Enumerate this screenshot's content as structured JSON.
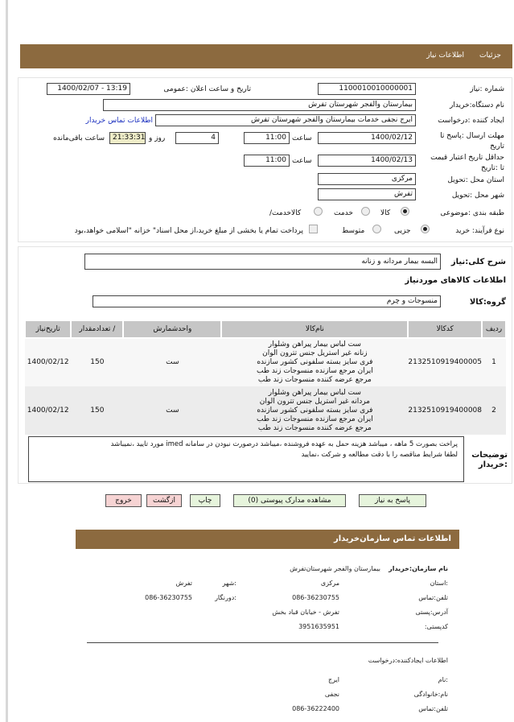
{
  "tabs": {
    "details": "جزئیات",
    "need_info": "اطلاعات نیاز"
  },
  "form": {
    "need_number_label": "شماره :نیاز",
    "need_number": "1100010010000001",
    "announce_label": "تاریخ و ساعت اعلان :عمومی",
    "announce_value": "1400/02/07 - 13:19",
    "buyer_org_label": "نام دستگاه:خریدار",
    "buyer_org": "بیمارستان والفجر شهرستان تفرش",
    "creator_label": "ایجاد کننده :درخواست",
    "creator": "ایرج نجفی خدمات بیمارستان والفجر شهرستان تفرش",
    "contact_link": "اطلاعات تماس خریدار",
    "deadline_label": "مهلت ارسال :پاسخ تا تاریخ",
    "deadline_date": "1400/02/12",
    "time_label": "ساعت",
    "deadline_time": "11:00",
    "days": "4",
    "days_label": "روز و",
    "remaining": "21:33:31",
    "remaining_label": "ساعت باقی‌مانده",
    "validity_label": "حداقل تاریخ اعتبار قیمت تا :تاریخ",
    "validity_date": "1400/02/13",
    "validity_time": "11:00",
    "province_label": "استان محل :تحویل",
    "province": "مرکزی",
    "city_label": "شهر محل :تحویل",
    "city": "تفرش",
    "category_label": "طبقه بندی :موضوعی",
    "cat_options": [
      "کالا",
      "خدمت",
      "/کالاخدمت"
    ],
    "cat_selected": "کالا",
    "process_label": "نوع فرآیند: خرید",
    "process_options": [
      "جزیی",
      "متوسط"
    ],
    "process_selected": "جزیی",
    "treasury_text": "پرداخت تمام یا بخشی از مبلغ خرید،از محل اسناد\" خزانه \"اسلامی خواهد،بود"
  },
  "summary": {
    "label": "شرح کلی:نیاز",
    "value": "البسه بیمار مردانه و زنانه",
    "goods_title": "اطلاعات کالاهای موردنیاز",
    "group_label": "گروه:کالا",
    "group_value": "منسوجات و چرم"
  },
  "table": {
    "headers": [
      "ردیف",
      "کدکالا",
      "نام‌کالا",
      "واحدشمارش",
      "/ تعدادمقدار",
      "تاریخ‌نیاز"
    ],
    "rows": [
      {
        "no": "1",
        "code": "2132510919400005",
        "name": [
          "ست لباس بیمار پیراهن وشلوار",
          "زنانه غیر استریل جنس تترون الوان",
          "فری سایز بسته سلفونی کشور سازنده",
          "ایران مرجع سازنده منسوجات زند طب",
          "مرجع عرضه کننده منسوجات زند طب"
        ],
        "unit": "ست",
        "qty": "150",
        "date": "1400/02/12"
      },
      {
        "no": "2",
        "code": "2132510919400008",
        "name": [
          "ست لباس بیمار پیراهن وشلوار",
          "مردانه غیر استریل جنس تترون الوان",
          "فری سایز بسته سلفونی کشور سازنده",
          "ایران مرجع سازنده منسوجات زند طب",
          "مرجع عرضه کننده منسوجات زند طب"
        ],
        "unit": "ست",
        "qty": "150",
        "date": "1400/02/12"
      }
    ]
  },
  "notes": {
    "label": "توضیحات :خریدار",
    "line1": "پراخت بصورت 5 ماهه ، میباشد هزینه حمل به عهده فروشنده ،میباشد درصورت نبودن در سامانه imed مورد تایید ،نمیباشد",
    "line2": "لطفا شرایط مناقصه را با دقت مطالعه و شرکت ،نمایید"
  },
  "buttons": {
    "reply": "پاسخ به نیاز",
    "attachments": "مشاهده مدارک پیوستی (0)",
    "print": "چاپ",
    "back": "ازگشت",
    "exit": "خروج"
  },
  "contact": {
    "title": "اطلاعات تماس سازمان‌خریدار",
    "org_label": "نام سازمان:خریدار",
    "org": "بیمارستان والفجر شهرستان‌تفرش",
    "province_label": ":استان",
    "province": "مرکزی",
    "city_label": ":شهر",
    "city": "تفرش",
    "phone_label": "تلفن:تماس",
    "phone": "086-36230755",
    "fax_label": ":دورنگار",
    "fax": "086-36230755",
    "address_label": "آدرس:پستی",
    "address": "تفرش - خیابان قباد بخش",
    "postal_label": "کدپستی:",
    "postal": "3951635951",
    "creator_title": "اطلاعات ایجادکننده:درخواست",
    "name_label": ":نام",
    "name": "ایرج",
    "family_label": "نام:خانوادگی",
    "family": "نجفی",
    "cphone_label": "تلفن:تماس",
    "cphone": "086-36222400"
  },
  "colors": {
    "header": "#8c6a3f",
    "remaining_bg": "#eeecc8",
    "green_btn": "#e6f4dc",
    "pink_btn": "#f6d3d3"
  }
}
